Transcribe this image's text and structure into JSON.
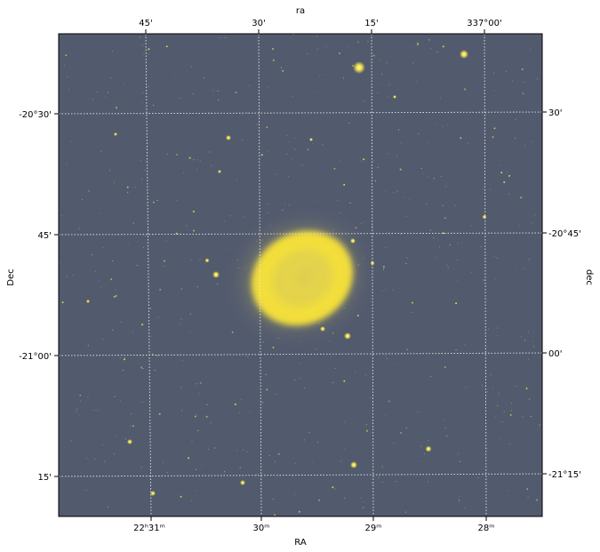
{
  "plot": {
    "title_top": "ra",
    "xlabel_bottom": "RA",
    "ylabel_left": "Dec",
    "ylabel_right": "dec",
    "top_ticks": [
      "45'",
      "30'",
      "15'",
      "337°00'"
    ],
    "bottom_ticks": [
      "22ʰ31ᵐ",
      "30ᵐ",
      "29ᵐ",
      "28ᵐ"
    ],
    "left_ticks": [
      "-20°30'",
      "45'",
      "-21°00'",
      "15'"
    ],
    "right_ticks": [
      "30'",
      "-20°45'",
      "00'",
      "-21°15'"
    ]
  },
  "image": {
    "subject": "planetary nebula (ring-shaped, yellow)",
    "background_color": "#525a6e",
    "nebula_color": "#f2df3a",
    "grid_color": "#e8e8e8",
    "grid": true,
    "grid_style": "dotted"
  }
}
